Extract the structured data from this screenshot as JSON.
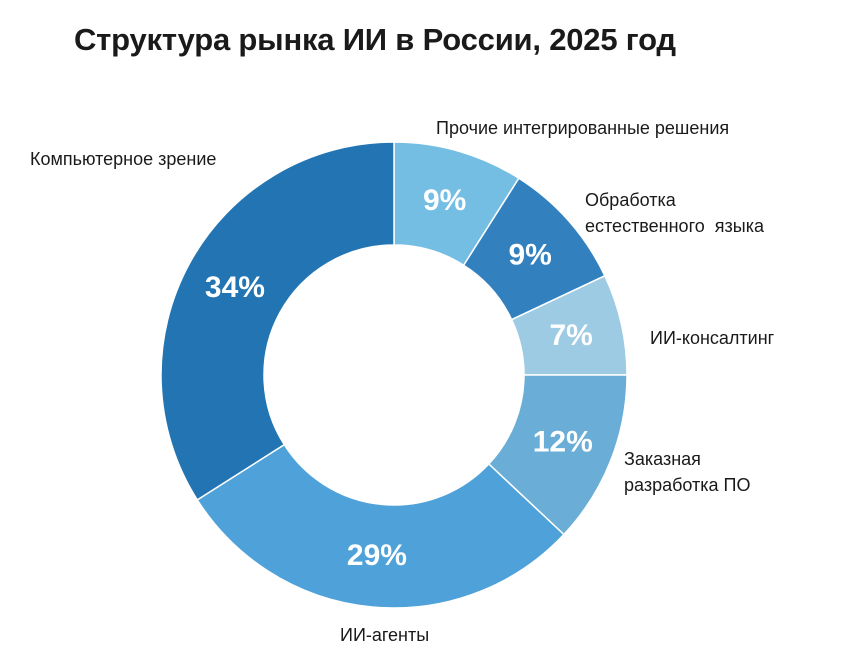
{
  "chart_data": {
    "type": "pie",
    "title": "Структура рынка ИИ в России, 2025 год",
    "slices": [
      {
        "label": "Прочие интегрированные решения",
        "value": 9,
        "display": "9%",
        "color": "#74bde3"
      },
      {
        "label": "Обработка\nестественного  языка",
        "value": 9,
        "display": "9%",
        "color": "#3380bf"
      },
      {
        "label": "ИИ-консалтинг",
        "value": 7,
        "display": "7%",
        "color": "#9ecbe4"
      },
      {
        "label": "Заказная\nразработка ПО",
        "value": 12,
        "display": "12%",
        "color": "#6aaed8"
      },
      {
        "label": "ИИ-агенты",
        "value": 29,
        "display": "29%",
        "color": "#4ea2d9"
      },
      {
        "label": "Компьютерное зрение",
        "value": 34,
        "display": "34%",
        "color": "#2275b2"
      }
    ]
  }
}
